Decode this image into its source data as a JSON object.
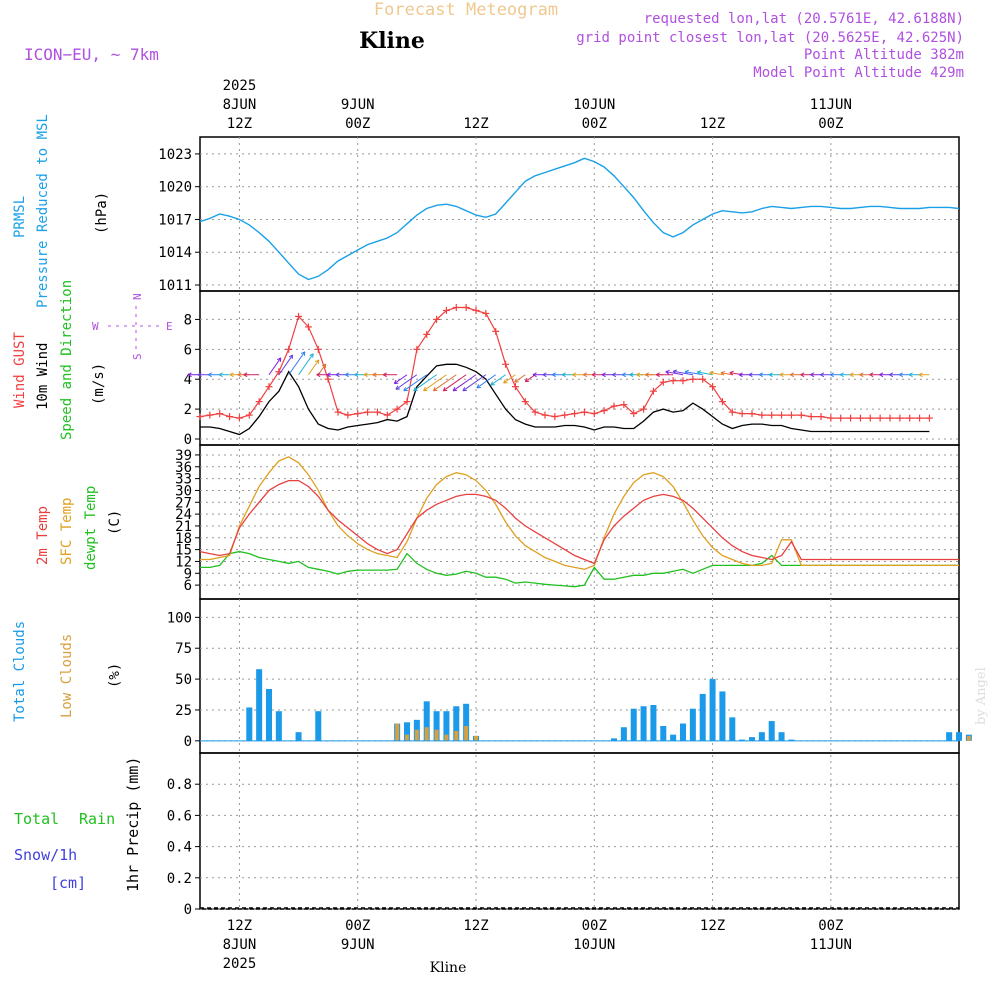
{
  "header": {
    "title": "Forecast Meteogram",
    "location": "Kline",
    "model": "ICON−EU, ~ 7km",
    "requested": "requested lon,lat (20.5761E, 42.6188N)",
    "gridpoint": "grid point closest lon,lat (20.5625E, 42.625N)",
    "point_alt": "Point Altitude 382m",
    "model_alt": "Model Point Altitude 429m",
    "footer_location": "Kline",
    "credit": "by Angel"
  },
  "time_axis": {
    "start_hour_offset": -4,
    "end_hour_offset": 73,
    "ticks": [
      {
        "h": 0,
        "top": [
          "2025",
          "8JUN",
          "12Z"
        ],
        "bottom": [
          "12Z",
          "8JUN",
          "2025"
        ]
      },
      {
        "h": 12,
        "top": [
          "9JUN",
          "00Z"
        ],
        "bottom": [
          "00Z",
          "9JUN"
        ]
      },
      {
        "h": 24,
        "top": [
          "12Z"
        ],
        "bottom": [
          "12Z"
        ]
      },
      {
        "h": 36,
        "top": [
          "10JUN",
          "00Z"
        ],
        "bottom": [
          "00Z",
          "10JUN"
        ]
      },
      {
        "h": 48,
        "top": [
          "12Z"
        ],
        "bottom": [
          "12Z"
        ]
      },
      {
        "h": 60,
        "top": [
          "11JUN",
          "00Z"
        ],
        "bottom": [
          "00Z",
          "11JUN"
        ]
      }
    ]
  },
  "labels": {
    "pressure": {
      "l1": "PRMSL",
      "l2": "Pressure Reduced to MSL",
      "unit": "(hPa)"
    },
    "wind": {
      "l1": "Wind GUST",
      "l2": "10m Wind",
      "l3": "Speed and Direction",
      "unit": "(m/s)",
      "compass_n": "N",
      "compass_s": "S",
      "compass_w": "W",
      "compass_e": "E"
    },
    "temp": {
      "l1": "2m Temp",
      "l2": "SFC Temp",
      "l3": "dewpt Temp",
      "unit": "(C)"
    },
    "clouds": {
      "l1": "Total Clouds",
      "l2": "Low Clouds",
      "unit": "(%)"
    },
    "precip": {
      "l1": "Total",
      "l1b": "Rain",
      "l2": "Snow/1h",
      "l3": "[cm]",
      "l4": "1hr Precip (mm)"
    }
  },
  "colors": {
    "pressure": "#1aa0e8",
    "gust": "#f04040",
    "wind": "#000000",
    "temp2m": "#e84040",
    "sfc": "#e0a020",
    "dewpt": "#20c020",
    "cloud_total": "#1a9ae8",
    "cloud_low": "#d8a040",
    "title": "#f0c890",
    "meta": "#b050e0",
    "rain": "#20c020",
    "snow": "#4040e0"
  },
  "chart_data": [
    {
      "type": "line",
      "name": "pressure",
      "ylim": [
        1011,
        1024
      ],
      "yticks": [
        1011,
        1014,
        1017,
        1020,
        1023
      ],
      "x": [
        -4,
        -3,
        -2,
        -1,
        0,
        1,
        2,
        3,
        4,
        5,
        6,
        7,
        8,
        9,
        10,
        11,
        12,
        13,
        14,
        15,
        16,
        17,
        18,
        19,
        20,
        21,
        22,
        23,
        24,
        25,
        26,
        27,
        28,
        29,
        30,
        31,
        32,
        33,
        34,
        35,
        36,
        37,
        38,
        39,
        40,
        41,
        42,
        43,
        44,
        45,
        46,
        47,
        48,
        49,
        50,
        51,
        52,
        53,
        54,
        55,
        56,
        57,
        58,
        59,
        60,
        61,
        62,
        63,
        64,
        65,
        66,
        67,
        68,
        69,
        70,
        71,
        72,
        73
      ],
      "series": [
        {
          "values": [
            1016.8,
            1017.1,
            1017.5,
            1017.3,
            1017.0,
            1016.5,
            1015.8,
            1015.0,
            1014.0,
            1013.0,
            1012.0,
            1011.5,
            1011.8,
            1012.4,
            1013.2,
            1013.7,
            1014.2,
            1014.7,
            1015.0,
            1015.3,
            1015.8,
            1016.6,
            1017.4,
            1018.0,
            1018.3,
            1018.4,
            1018.2,
            1017.8,
            1017.4,
            1017.2,
            1017.5,
            1018.5,
            1019.5,
            1020.5,
            1021.0,
            1021.3,
            1021.6,
            1021.9,
            1022.2,
            1022.6,
            1022.3,
            1021.8,
            1021.0,
            1020.0,
            1019.0,
            1017.8,
            1016.7,
            1015.8,
            1015.4,
            1015.8,
            1016.5,
            1017.0,
            1017.5,
            1017.8,
            1017.7,
            1017.6,
            1017.7,
            1018.0,
            1018.2,
            1018.1,
            1018.0,
            1018.1,
            1018.2,
            1018.2,
            1018.1,
            1018.0,
            1018.0,
            1018.1,
            1018.2,
            1018.2,
            1018.1,
            1018.0,
            1018.0,
            1018.0,
            1018.1,
            1018.1,
            1018.1,
            1018.0
          ]
        }
      ]
    },
    {
      "type": "line",
      "name": "wind",
      "ylim": [
        0,
        9.5
      ],
      "yticks": [
        0,
        2,
        4,
        6,
        8
      ],
      "x": [
        -4,
        -3,
        -2,
        -1,
        0,
        1,
        2,
        3,
        4,
        5,
        6,
        7,
        8,
        9,
        10,
        11,
        12,
        13,
        14,
        15,
        16,
        17,
        18,
        19,
        20,
        21,
        22,
        23,
        24,
        25,
        26,
        27,
        28,
        29,
        30,
        31,
        32,
        33,
        34,
        35,
        36,
        37,
        38,
        39,
        40,
        41,
        42,
        43,
        44,
        45,
        46,
        47,
        48,
        49,
        50,
        51,
        52,
        53,
        54,
        55,
        56,
        57,
        58,
        59,
        60,
        61,
        62,
        63,
        64,
        65,
        66,
        67,
        68,
        69,
        70
      ],
      "series": [
        {
          "name": "gust",
          "values": [
            1.5,
            1.6,
            1.7,
            1.5,
            1.4,
            1.6,
            2.5,
            3.5,
            4.5,
            6.0,
            8.2,
            7.5,
            6.0,
            4.0,
            1.8,
            1.6,
            1.7,
            1.8,
            1.8,
            1.6,
            2.0,
            2.5,
            6.0,
            7.0,
            8.0,
            8.6,
            8.8,
            8.8,
            8.6,
            8.4,
            7.2,
            5.0,
            3.5,
            2.5,
            1.8,
            1.6,
            1.5,
            1.6,
            1.7,
            1.8,
            1.7,
            1.9,
            2.2,
            2.3,
            1.7,
            2.0,
            3.2,
            3.8,
            3.9,
            3.9,
            4.0,
            4.0,
            3.5,
            2.5,
            1.8,
            1.7,
            1.7,
            1.6,
            1.6,
            1.6,
            1.6,
            1.6,
            1.5,
            1.5,
            1.4,
            1.4,
            1.4,
            1.4,
            1.4,
            1.4,
            1.4,
            1.4,
            1.4,
            1.4,
            1.4
          ]
        },
        {
          "name": "wind",
          "values": [
            0.8,
            0.8,
            0.7,
            0.5,
            0.3,
            0.7,
            1.5,
            2.5,
            3.2,
            4.5,
            3.5,
            2.0,
            1.0,
            0.7,
            0.6,
            0.8,
            0.9,
            1.0,
            1.1,
            1.3,
            1.2,
            1.5,
            3.5,
            4.2,
            4.9,
            5.0,
            5.0,
            4.8,
            4.5,
            4.0,
            3.0,
            2.0,
            1.3,
            1.0,
            0.8,
            0.8,
            0.8,
            0.9,
            0.9,
            0.8,
            0.6,
            0.8,
            0.8,
            0.7,
            0.7,
            1.2,
            1.8,
            2.0,
            1.8,
            1.9,
            2.4,
            2.0,
            1.5,
            1.0,
            0.7,
            0.9,
            1.0,
            1.0,
            0.9,
            0.9,
            0.7,
            0.6,
            0.5,
            0.5,
            0.5,
            0.5,
            0.5,
            0.5,
            0.5,
            0.5,
            0.5,
            0.5,
            0.5,
            0.5,
            0.5
          ]
        }
      ]
    },
    {
      "type": "line",
      "name": "temperature",
      "ylim": [
        4,
        40
      ],
      "yticks": [
        6,
        9,
        12,
        15,
        18,
        21,
        24,
        27,
        30,
        33,
        36,
        39
      ],
      "x": [
        -4,
        -3,
        -2,
        -1,
        0,
        1,
        2,
        3,
        4,
        5,
        6,
        7,
        8,
        9,
        10,
        11,
        12,
        13,
        14,
        15,
        16,
        17,
        18,
        19,
        20,
        21,
        22,
        23,
        24,
        25,
        26,
        27,
        28,
        29,
        30,
        31,
        32,
        33,
        34,
        35,
        36,
        37,
        38,
        39,
        40,
        41,
        42,
        43,
        44,
        45,
        46,
        47,
        48,
        49,
        50,
        51,
        52,
        53,
        54,
        55,
        56,
        57,
        58,
        59,
        60,
        61,
        62,
        63,
        64,
        65,
        66,
        67,
        68,
        69,
        70,
        71,
        72,
        73
      ],
      "series": [
        {
          "name": "2m Temp",
          "values": [
            14.5,
            14.0,
            13.5,
            14.0,
            20.5,
            24.0,
            27.0,
            30.0,
            31.5,
            32.5,
            32.5,
            31.0,
            28.5,
            25.0,
            22.5,
            20.5,
            18.5,
            16.5,
            15.0,
            14.0,
            15.0,
            19.0,
            23.0,
            25.0,
            26.5,
            27.5,
            28.5,
            29.0,
            29.0,
            28.5,
            27.5,
            25.5,
            23.0,
            21.0,
            19.5,
            18.0,
            16.5,
            15.0,
            13.5,
            12.5,
            11.5,
            17.5,
            21.0,
            23.5,
            25.5,
            27.5,
            28.5,
            29.0,
            28.5,
            27.5,
            25.5,
            23.0,
            20.5,
            18.0,
            16.0,
            14.5,
            13.5,
            13.0,
            12.5,
            13.5,
            17.0,
            12.5,
            12.5,
            12.5,
            12.5,
            12.5,
            12.5,
            12.5,
            12.5,
            12.5,
            12.5,
            12.5,
            12.5,
            12.5,
            12.5,
            12.5,
            12.5,
            12.5
          ]
        },
        {
          "name": "SFC Temp",
          "values": [
            12.5,
            12.5,
            13.0,
            13.5,
            21.0,
            26.0,
            31.0,
            34.5,
            37.5,
            38.5,
            37.0,
            34.0,
            30.0,
            25.0,
            21.0,
            18.5,
            16.5,
            15.0,
            14.0,
            13.5,
            13.0,
            17.0,
            23.0,
            28.0,
            31.5,
            33.5,
            34.5,
            34.0,
            32.5,
            30.0,
            26.5,
            22.0,
            18.5,
            16.0,
            14.5,
            13.0,
            12.0,
            11.0,
            10.5,
            10.0,
            11.0,
            18.0,
            24.0,
            28.5,
            32.0,
            34.0,
            34.5,
            33.5,
            31.0,
            27.0,
            22.5,
            18.5,
            15.5,
            13.5,
            12.5,
            11.5,
            11.0,
            11.0,
            11.5,
            17.5,
            17.5,
            11.0,
            11.0,
            11.0,
            11.0,
            11.0,
            11.0,
            11.0,
            11.0,
            11.0,
            11.0,
            11.0,
            11.0,
            11.0,
            11.0,
            11.0,
            11.0,
            11.0
          ]
        },
        {
          "name": "dewpt Temp",
          "values": [
            10.5,
            10.5,
            11.0,
            14.0,
            14.5,
            14.0,
            13.0,
            12.5,
            12.0,
            11.5,
            12.0,
            10.5,
            10.0,
            9.5,
            8.8,
            9.5,
            9.8,
            9.8,
            9.8,
            9.8,
            10.0,
            14.0,
            11.5,
            10.0,
            9.0,
            8.5,
            8.8,
            9.5,
            9.0,
            8.0,
            8.0,
            7.5,
            6.5,
            6.8,
            6.5,
            6.2,
            6.0,
            5.8,
            5.6,
            6.0,
            10.5,
            7.5,
            7.5,
            8.0,
            8.5,
            8.5,
            9.0,
            9.0,
            9.5,
            10.0,
            9.0,
            10.0,
            11.0,
            11.0,
            11.0,
            11.0,
            11.0,
            11.5,
            13.5,
            11.0,
            11.0,
            11.0,
            11.0,
            11.0,
            11.0,
            11.0,
            11.0,
            11.0,
            11.0,
            11.0,
            11.0,
            11.0,
            11.0,
            11.0,
            11.0,
            11.0,
            11.0,
            11.0
          ]
        }
      ]
    },
    {
      "type": "bar",
      "name": "clouds",
      "ylim": [
        -5,
        110
      ],
      "yticks": [
        0,
        25,
        50,
        75,
        100
      ],
      "x": [
        1,
        2,
        3,
        4,
        6,
        8,
        16,
        17,
        18,
        19,
        20,
        21,
        22,
        23,
        24,
        38,
        39,
        40,
        41,
        42,
        43,
        44,
        45,
        46,
        47,
        48,
        49,
        50,
        51,
        52,
        53,
        54,
        55,
        56,
        57,
        72,
        73,
        74
      ],
      "series": [
        {
          "name": "Total Clouds",
          "values": [
            27,
            58,
            42,
            24,
            7,
            24,
            14,
            15,
            17,
            32,
            24,
            24,
            28,
            30,
            4,
            2,
            11,
            26,
            28,
            29,
            12,
            5,
            14,
            26,
            38,
            50,
            40,
            19,
            1,
            3,
            7,
            16,
            7,
            1,
            0,
            7,
            7,
            5
          ]
        },
        {
          "name": "Low Clouds",
          "values": [
            0,
            0,
            0,
            0,
            0,
            0,
            14,
            5,
            9,
            11,
            9,
            5,
            8,
            12,
            4,
            0,
            0,
            0,
            0,
            0,
            0,
            0,
            0,
            0,
            0,
            0,
            0,
            0,
            0,
            0,
            0,
            0,
            0,
            0,
            0,
            0,
            0,
            4
          ]
        }
      ]
    },
    {
      "type": "bar",
      "name": "precip",
      "ylim": [
        0,
        1.0
      ],
      "yticks": [
        0,
        0.2,
        0.4,
        0.6,
        0.8
      ],
      "x": [],
      "series": [
        {
          "name": "1hr Precip",
          "values": []
        }
      ]
    }
  ]
}
